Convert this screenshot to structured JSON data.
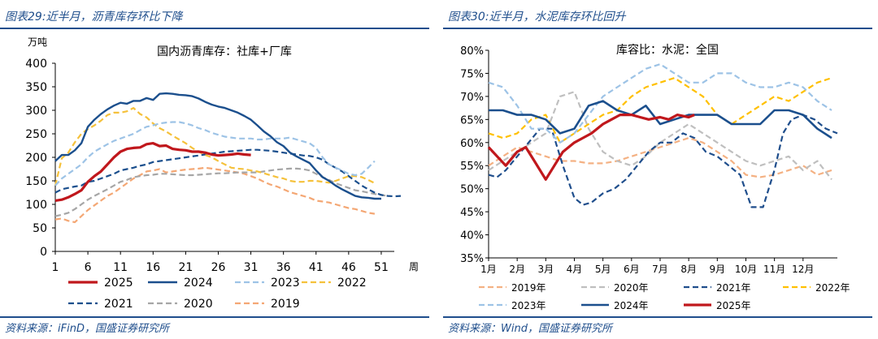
{
  "left": {
    "figure_title": "图表29:近半月，沥青库存环比下降",
    "source": "资料来源：iFinD，国盛证券研究所",
    "colors": {
      "title": "#1f4e8c"
    },
    "chart_data": {
      "type": "line",
      "title": "国内沥青库存：社库+厂库",
      "ylabel": "万吨",
      "xlabel": "周",
      "xlim": [
        1,
        53
      ],
      "ylim": [
        0,
        400
      ],
      "x_ticks": [
        1,
        6,
        11,
        16,
        21,
        26,
        31,
        36,
        41,
        46,
        51
      ],
      "y_ticks": [
        0,
        50,
        100,
        150,
        200,
        250,
        300,
        350,
        400
      ],
      "grid": false,
      "legend_position": "bottom",
      "series": [
        {
          "name": "2025",
          "color": "#c0171c",
          "dash": "solid",
          "width": 3.2,
          "values": [
            108,
            110,
            115,
            122,
            130,
            148,
            160,
            170,
            185,
            200,
            212,
            218,
            220,
            221,
            228,
            230,
            224,
            225,
            218,
            216,
            215,
            212,
            212,
            210,
            206,
            204,
            205,
            206,
            208,
            206,
            205
          ]
        },
        {
          "name": "2024",
          "color": "#1b4f8d",
          "dash": "solid",
          "width": 2.4,
          "values": [
            192,
            205,
            205,
            215,
            230,
            265,
            280,
            292,
            302,
            310,
            316,
            314,
            320,
            320,
            326,
            322,
            335,
            336,
            335,
            333,
            332,
            330,
            325,
            318,
            312,
            308,
            305,
            300,
            295,
            288,
            280,
            268,
            255,
            245,
            232,
            224,
            210,
            202,
            195,
            188,
            172,
            158,
            150,
            140,
            132,
            125,
            118,
            115,
            114,
            112,
            112
          ]
        },
        {
          "name": "2023",
          "color": "#9dc3e6",
          "dash": "dash",
          "width": 2.2,
          "values": [
            140,
            155,
            165,
            175,
            185,
            200,
            212,
            220,
            228,
            235,
            240,
            245,
            250,
            258,
            265,
            268,
            272,
            274,
            275,
            275,
            272,
            268,
            262,
            258,
            252,
            248,
            244,
            242,
            240,
            240,
            240,
            238,
            238,
            240,
            240,
            240,
            242,
            238,
            234,
            230,
            220,
            200,
            185,
            178,
            172,
            165,
            162,
            165,
            178,
            192
          ]
        },
        {
          "name": "2022",
          "color": "#f5c13b",
          "dash": "dash",
          "width": 2.2,
          "values": [
            140,
            198,
            210,
            232,
            250,
            260,
            268,
            278,
            290,
            295,
            295,
            298,
            305,
            292,
            285,
            272,
            262,
            255,
            246,
            238,
            230,
            220,
            212,
            205,
            200,
            192,
            185,
            178,
            176,
            175,
            172,
            170,
            166,
            162,
            158,
            155,
            150,
            148,
            148,
            150,
            150,
            148,
            146,
            150,
            155,
            160,
            160,
            158,
            152,
            145
          ]
        },
        {
          "name": "2021",
          "color": "#1b4f8d",
          "dash": "dash",
          "width": 2.2,
          "values": [
            125,
            132,
            135,
            138,
            140,
            148,
            150,
            155,
            160,
            165,
            172,
            175,
            178,
            182,
            185,
            190,
            192,
            194,
            196,
            198,
            200,
            202,
            204,
            206,
            208,
            210,
            212,
            213,
            214,
            215,
            216,
            216,
            215,
            214,
            212,
            210,
            208,
            206,
            204,
            203,
            200,
            195,
            185,
            178,
            170,
            160,
            150,
            140,
            132,
            125,
            120,
            118,
            117,
            118
          ]
        },
        {
          "name": "2020",
          "color": "#a6a6a6",
          "dash": "dash",
          "width": 2.2,
          "values": [
            75,
            78,
            82,
            90,
            100,
            110,
            118,
            125,
            132,
            140,
            148,
            152,
            158,
            160,
            162,
            163,
            165,
            165,
            164,
            163,
            162,
            162,
            163,
            164,
            165,
            166,
            166,
            167,
            168,
            168,
            168,
            168,
            170,
            172,
            174,
            175,
            176,
            176,
            175,
            172,
            165,
            158,
            152,
            145,
            140,
            135,
            130,
            128,
            125,
            122,
            120,
            118
          ]
        },
        {
          "name": "2019",
          "color": "#f4a774",
          "dash": "dash",
          "width": 2.2,
          "values": [
            68,
            70,
            65,
            62,
            75,
            88,
            98,
            108,
            118,
            125,
            135,
            145,
            155,
            162,
            170,
            172,
            175,
            168,
            170,
            172,
            174,
            175,
            176,
            178,
            176,
            174,
            172,
            170,
            168,
            165,
            160,
            155,
            148,
            142,
            138,
            132,
            126,
            122,
            118,
            114,
            108,
            106,
            104,
            100,
            96,
            92,
            90,
            86,
            82,
            80
          ]
        }
      ]
    }
  },
  "right": {
    "figure_title": "图表30:近半月，水泥库存环比回升",
    "source": "资料来源：Wind，国盛证券研究所",
    "colors": {
      "title": "#1f4e8c"
    },
    "chart_data": {
      "type": "line",
      "title": "库容比：水泥：全国",
      "xlabel": "",
      "ylabel": "",
      "xlim": [
        1,
        13.2
      ],
      "ylim": [
        35,
        80
      ],
      "x_ticks": [
        "1月",
        "2月",
        "3月",
        "4月",
        "5月",
        "6月",
        "7月",
        "8月",
        "9月",
        "10月",
        "11月",
        "12月"
      ],
      "y_ticks": [
        "35%",
        "40%",
        "45%",
        "50%",
        "55%",
        "60%",
        "65%",
        "70%",
        "75%",
        "80%"
      ],
      "grid": false,
      "legend_position": "bottom",
      "series": [
        {
          "name": "2019年",
          "color": "#f4b183",
          "dash": "dash",
          "width": 2.2,
          "x": [
            1,
            1.5,
            2,
            2.5,
            3,
            3.5,
            4,
            4.5,
            5,
            5.5,
            6,
            6.5,
            7,
            7.5,
            8,
            8.5,
            9,
            9.5,
            10,
            10.5,
            11,
            11.5,
            12,
            12.5,
            13
          ],
          "y": [
            55,
            57,
            59,
            58,
            57,
            56,
            56,
            55.5,
            55.5,
            56,
            57,
            58,
            59,
            60,
            61,
            60,
            58,
            56,
            53,
            52.5,
            53,
            54,
            55,
            53,
            54
          ]
        },
        {
          "name": "2020年",
          "color": "#bfbfbf",
          "dash": "dash",
          "width": 2.2,
          "x": [
            1,
            1.5,
            2,
            2.5,
            3,
            3.5,
            4,
            4.5,
            5,
            5.5,
            6,
            6.5,
            7,
            7.5,
            8,
            8.5,
            9,
            9.5,
            10,
            10.5,
            11,
            11.5,
            12,
            12.5,
            13
          ],
          "y": [
            54,
            56,
            58,
            60,
            62,
            70,
            71,
            63,
            58,
            56,
            55,
            57,
            60,
            62,
            64,
            62,
            60,
            58,
            56,
            55,
            56,
            57,
            54,
            56,
            52
          ]
        },
        {
          "name": "2021年",
          "color": "#1f4e8c",
          "dash": "dash",
          "width": 2.2,
          "x": [
            1,
            1.3,
            1.6,
            2,
            2.4,
            2.8,
            3.2,
            3.6,
            4,
            4.3,
            4.6,
            5,
            5.4,
            5.8,
            6.2,
            6.6,
            7,
            7.4,
            7.8,
            8.2,
            8.6,
            9,
            9.4,
            9.8,
            10.2,
            10.6,
            11,
            11.3,
            11.6,
            12,
            12.4,
            12.8,
            13.2
          ],
          "y": [
            53,
            52.5,
            54,
            57,
            60,
            63,
            63,
            55,
            48,
            46.5,
            47,
            49,
            50,
            52,
            55,
            58,
            60,
            60,
            62,
            61,
            58,
            57,
            55,
            53,
            46,
            46,
            54,
            62,
            65,
            66,
            65,
            63,
            62
          ]
        },
        {
          "name": "2022年",
          "color": "#ffc000",
          "dash": "dash",
          "width": 2.2,
          "x": [
            1,
            1.5,
            2,
            2.5,
            3,
            3.5,
            4,
            4.5,
            5,
            5.5,
            6,
            6.5,
            7,
            7.5,
            8,
            8.5,
            9,
            9.5,
            10,
            10.5,
            11,
            11.5,
            12,
            12.5,
            13
          ],
          "y": [
            62,
            61,
            62,
            65,
            66,
            60,
            62,
            64,
            66,
            67,
            70,
            72,
            73,
            74,
            72,
            70,
            66,
            64,
            66,
            68,
            70,
            69,
            71,
            73,
            74
          ]
        },
        {
          "name": "2023年",
          "color": "#9dc3e6",
          "dash": "dash",
          "width": 2.2,
          "x": [
            1,
            1.5,
            2,
            2.5,
            3,
            3.5,
            4,
            4.5,
            5,
            5.5,
            6,
            6.5,
            7,
            7.5,
            8,
            8.5,
            9,
            9.5,
            10,
            10.5,
            11,
            11.5,
            12,
            12.5,
            13
          ],
          "y": [
            73,
            72,
            68,
            63,
            63,
            60,
            62,
            66,
            70,
            72,
            74,
            76,
            77,
            75,
            73,
            73,
            75,
            75,
            73,
            72,
            72,
            73,
            72,
            69,
            67
          ]
        },
        {
          "name": "2024年",
          "color": "#1b4f8d",
          "dash": "solid",
          "width": 2.6,
          "x": [
            1,
            1.5,
            2,
            2.5,
            3,
            3.5,
            4,
            4.5,
            5,
            5.5,
            6,
            6.5,
            7,
            7.5,
            8,
            8.5,
            9,
            9.5,
            10,
            10.5,
            11,
            11.5,
            12,
            12.5,
            13
          ],
          "y": [
            67,
            67,
            66,
            66,
            65,
            62,
            63,
            68,
            69,
            67,
            66,
            68,
            64,
            65,
            66,
            66,
            66,
            64,
            64,
            64,
            67,
            67,
            66,
            63,
            61
          ]
        },
        {
          "name": "2025年",
          "color": "#c0171c",
          "dash": "solid",
          "width": 3.2,
          "x": [
            1,
            1.3,
            1.6,
            2,
            2.3,
            2.6,
            3,
            3.3,
            3.6,
            4,
            4.3,
            4.6,
            5,
            5.3,
            5.6,
            6,
            6.3,
            6.6,
            7,
            7.3,
            7.6,
            8,
            8.2
          ],
          "y": [
            59,
            57,
            55,
            58,
            59,
            56,
            52,
            55,
            58,
            60,
            61,
            62,
            64,
            65,
            66,
            66,
            65.5,
            65,
            65.5,
            65,
            66,
            65.5,
            66
          ]
        }
      ]
    }
  }
}
